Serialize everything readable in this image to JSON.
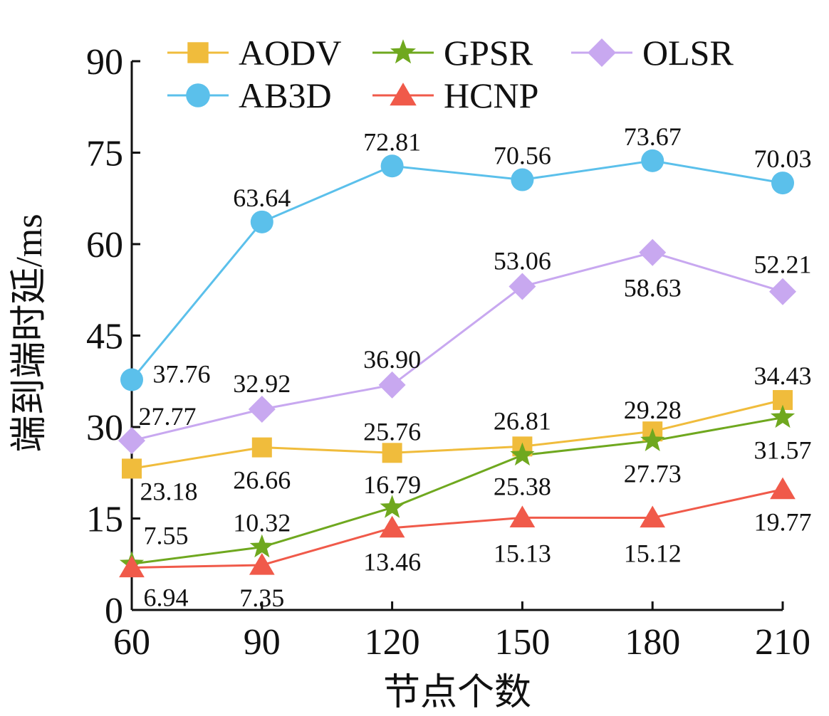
{
  "chart_data": {
    "type": "line",
    "xlabel": "节点个数",
    "ylabel": "端到端时延/ms",
    "x": [
      60,
      90,
      120,
      150,
      180,
      210
    ],
    "xlim": [
      60,
      210
    ],
    "ylim": [
      0,
      90
    ],
    "yticks": [
      0,
      15,
      30,
      45,
      60,
      75,
      90
    ],
    "xticks": [
      60,
      90,
      120,
      150,
      180,
      210
    ],
    "grid": false,
    "legend_position": "top",
    "series": [
      {
        "name": "AODV",
        "color": "#F0BC3C",
        "marker": "square",
        "values": [
          23.18,
          26.66,
          25.76,
          26.81,
          29.28,
          34.43
        ],
        "labels": [
          "23.18",
          "26.66",
          "25.76",
          "26.81",
          "29.28",
          "34.43"
        ]
      },
      {
        "name": "GPSR",
        "color": "#6FA81F",
        "marker": "star",
        "values": [
          7.55,
          10.32,
          16.79,
          25.38,
          27.73,
          31.57
        ],
        "labels": [
          "7.55",
          "10.32",
          "16.79",
          "25.38",
          "27.73",
          "31.57"
        ]
      },
      {
        "name": "OLSR",
        "color": "#C8A8F0",
        "marker": "diamond",
        "values": [
          27.77,
          32.92,
          36.9,
          53.06,
          58.63,
          52.21
        ],
        "labels": [
          "27.77",
          "32.92",
          "36.90",
          "53.06",
          "58.63",
          "52.21"
        ]
      },
      {
        "name": "AB3D",
        "color": "#5BC0EB",
        "marker": "circle",
        "values": [
          37.76,
          63.64,
          72.81,
          70.56,
          73.67,
          70.03
        ],
        "labels": [
          "37.76",
          "63.64",
          "72.81",
          "70.56",
          "73.67",
          "70.03"
        ]
      },
      {
        "name": "HCNP",
        "color": "#F05A4A",
        "marker": "triangle",
        "values": [
          6.94,
          7.35,
          13.46,
          15.13,
          15.12,
          19.77
        ],
        "labels": [
          "6.94",
          "7.35",
          "13.46",
          "15.13",
          "15.12",
          "19.77"
        ]
      }
    ]
  }
}
